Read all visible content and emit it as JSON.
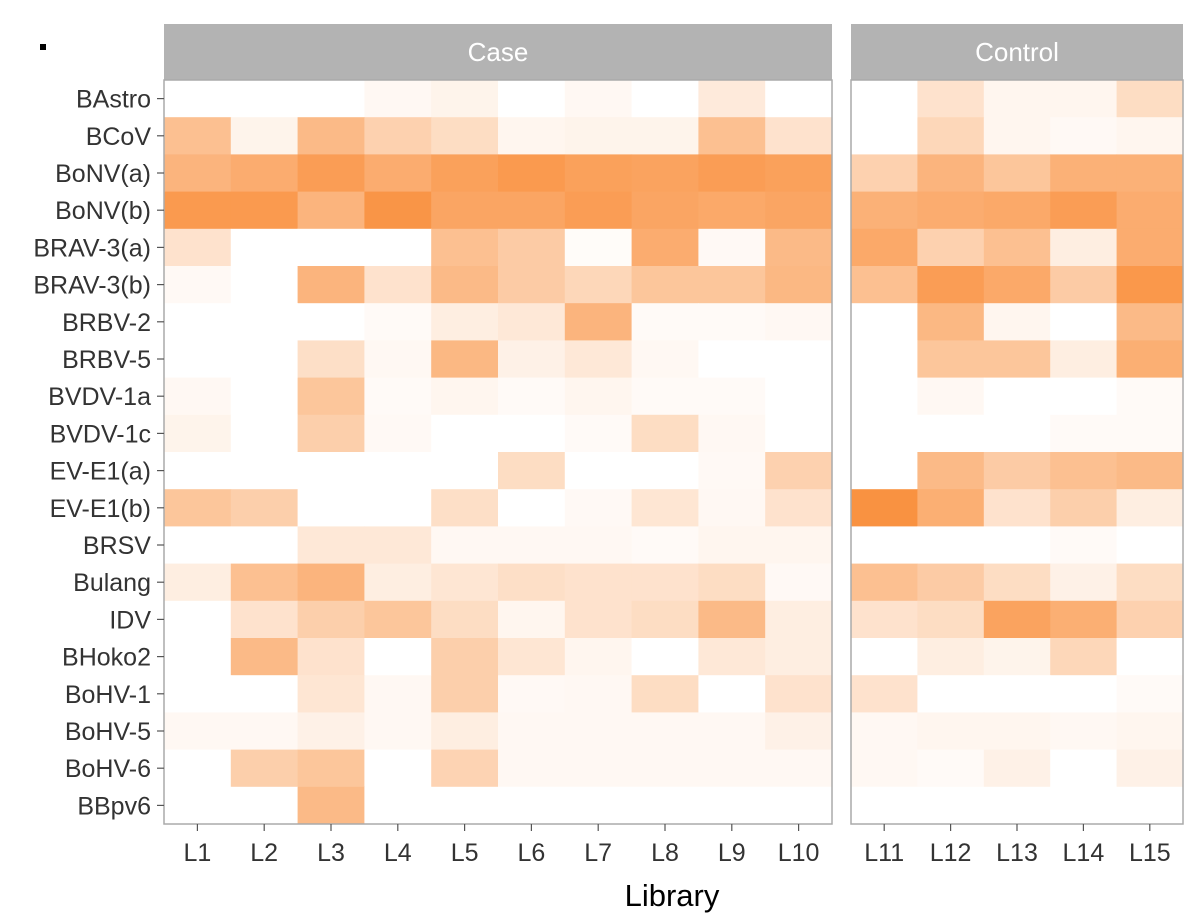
{
  "chart_data": {
    "type": "heatmap",
    "xlabel": "Library",
    "ylabel": "",
    "panels": [
      {
        "name": "Case",
        "columns": [
          "L1",
          "L2",
          "L3",
          "L4",
          "L5",
          "L6",
          "L7",
          "L8",
          "L9",
          "L10"
        ]
      },
      {
        "name": "Control",
        "columns": [
          "L11",
          "L12",
          "L13",
          "L14",
          "L15"
        ]
      }
    ],
    "rows": [
      "BAstro",
      "BCoV",
      "BoNV(a)",
      "BoNV(b)",
      "BRAV-3(a)",
      "BRAV-3(b)",
      "BRBV-2",
      "BRBV-5",
      "BVDV-1a",
      "BVDV-1c",
      "EV-E1(a)",
      "EV-E1(b)",
      "BRSV",
      "Bulang",
      "IDV",
      "BHoko2",
      "BoHV-1",
      "BoHV-5",
      "BoHV-6",
      "BBpv6"
    ],
    "value_scale": "relative intensity 0 (white) to 1 (dark orange)",
    "values": [
      [
        0,
        0,
        0,
        0.06,
        0.1,
        0,
        0.06,
        0,
        0.18,
        0,
        0,
        0.25,
        0.08,
        0.08,
        0.3
      ],
      [
        0.55,
        0.1,
        0.6,
        0.4,
        0.3,
        0.08,
        0.1,
        0.1,
        0.55,
        0.25,
        0,
        0.35,
        0.08,
        0.05,
        0.08
      ],
      [
        0.65,
        0.72,
        0.85,
        0.72,
        0.82,
        0.88,
        0.82,
        0.8,
        0.85,
        0.82,
        0.4,
        0.65,
        0.5,
        0.68,
        0.68
      ],
      [
        0.88,
        0.88,
        0.65,
        0.92,
        0.78,
        0.78,
        0.85,
        0.78,
        0.75,
        0.78,
        0.68,
        0.72,
        0.75,
        0.85,
        0.72
      ],
      [
        0.25,
        0,
        0,
        0,
        0.55,
        0.45,
        0.03,
        0.72,
        0.05,
        0.6,
        0.75,
        0.4,
        0.55,
        0.15,
        0.72
      ],
      [
        0.05,
        0,
        0.65,
        0.25,
        0.6,
        0.45,
        0.35,
        0.5,
        0.5,
        0.62,
        0.55,
        0.85,
        0.75,
        0.45,
        0.9
      ],
      [
        0,
        0,
        0,
        0.04,
        0.15,
        0.2,
        0.65,
        0.04,
        0.04,
        0.06,
        0,
        0.62,
        0.08,
        0,
        0.6
      ],
      [
        0,
        0,
        0.28,
        0.06,
        0.62,
        0.12,
        0.2,
        0.06,
        0,
        0,
        0,
        0.5,
        0.5,
        0.15,
        0.7
      ],
      [
        0.06,
        0,
        0.5,
        0.04,
        0.08,
        0.04,
        0.08,
        0.04,
        0.04,
        0,
        0,
        0.06,
        0,
        0,
        0.04
      ],
      [
        0.1,
        0,
        0.42,
        0.05,
        0,
        0,
        0.04,
        0.3,
        0.06,
        0,
        0,
        0,
        0,
        0.04,
        0.04
      ],
      [
        0,
        0,
        0,
        0,
        0,
        0.3,
        0,
        0,
        0.05,
        0.4,
        0,
        0.6,
        0.45,
        0.55,
        0.6
      ],
      [
        0.5,
        0.42,
        0,
        0,
        0.28,
        0,
        0.05,
        0.22,
        0.06,
        0.25,
        0.95,
        0.7,
        0.25,
        0.42,
        0.15
      ],
      [
        0,
        0,
        0.2,
        0.2,
        0.06,
        0.06,
        0.06,
        0.04,
        0.08,
        0.08,
        0,
        0,
        0,
        0.04,
        0
      ],
      [
        0.15,
        0.55,
        0.65,
        0.15,
        0.22,
        0.28,
        0.25,
        0.25,
        0.3,
        0.05,
        0.55,
        0.45,
        0.3,
        0.12,
        0.3
      ],
      [
        0,
        0.25,
        0.42,
        0.5,
        0.3,
        0.08,
        0.25,
        0.3,
        0.6,
        0.15,
        0.25,
        0.3,
        0.8,
        0.7,
        0.4
      ],
      [
        0,
        0.6,
        0.25,
        0,
        0.42,
        0.22,
        0.08,
        0,
        0.2,
        0.15,
        0,
        0.15,
        0.1,
        0.35,
        0
      ],
      [
        0,
        0,
        0.22,
        0.06,
        0.42,
        0.05,
        0.06,
        0.3,
        0,
        0.25,
        0.25,
        0,
        0,
        0,
        0.04
      ],
      [
        0.06,
        0.06,
        0.12,
        0.06,
        0.15,
        0.06,
        0.06,
        0.06,
        0.06,
        0.12,
        0.06,
        0.08,
        0.08,
        0.06,
        0.08
      ],
      [
        0,
        0.42,
        0.5,
        0,
        0.38,
        0.06,
        0.06,
        0.06,
        0.06,
        0.06,
        0.06,
        0.04,
        0.12,
        0,
        0.12
      ],
      [
        0,
        0,
        0.6,
        0,
        0,
        0,
        0,
        0,
        0,
        0,
        0,
        0,
        0,
        0,
        0
      ]
    ],
    "colors": {
      "low": "#ffffff",
      "high": "#f98c37",
      "strip": "#b3b3b3",
      "panel_border": "#aaaaaa",
      "text": "#333333",
      "label": "#000000"
    }
  }
}
